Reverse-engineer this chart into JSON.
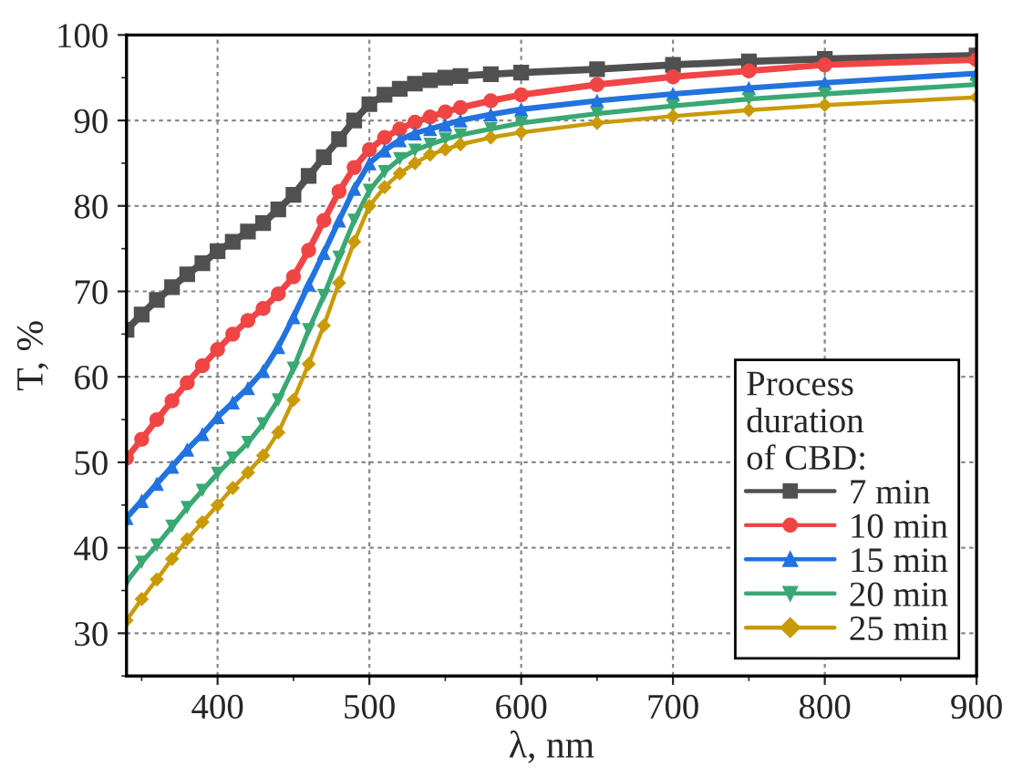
{
  "chart_data": {
    "type": "line",
    "xlabel": "λ, nm",
    "ylabel": "T, %",
    "legend_title": "Process\nduration\nof CBD:",
    "x": [
      340,
      350,
      360,
      370,
      380,
      390,
      400,
      410,
      420,
      430,
      440,
      450,
      460,
      470,
      480,
      490,
      500,
      510,
      520,
      530,
      540,
      550,
      560,
      580,
      600,
      650,
      700,
      750,
      800,
      900
    ],
    "series": [
      {
        "name": "7 min",
        "color": "#505050",
        "marker": "square",
        "values": [
          65.5,
          67.3,
          69,
          70.5,
          72,
          73.3,
          74.7,
          75.8,
          77,
          78,
          79.6,
          81.3,
          83.5,
          85.7,
          87.8,
          90,
          91.9,
          93,
          93.7,
          94.3,
          94.7,
          95.0,
          95.2,
          95.4,
          95.6,
          96.0,
          96.5,
          96.9,
          97.2,
          97.6
        ]
      },
      {
        "name": "10 min",
        "color": "#f04545",
        "marker": "circle",
        "values": [
          50.5,
          52.7,
          55,
          57.2,
          59.3,
          61.3,
          63.2,
          65,
          66.6,
          68,
          69.7,
          71.7,
          74.8,
          78.3,
          81.7,
          84.5,
          86.6,
          88,
          89,
          89.8,
          90.4,
          91,
          91.5,
          92.3,
          93,
          94.2,
          95.1,
          95.8,
          96.5,
          97.1
        ]
      },
      {
        "name": "15 min",
        "color": "#2272e0",
        "marker": "triangle",
        "values": [
          43.5,
          45.5,
          47.5,
          49.5,
          51.5,
          53.3,
          55.3,
          57,
          58.7,
          60.7,
          63.5,
          67,
          70.8,
          74.5,
          78.3,
          82,
          85,
          86.5,
          87.7,
          88.5,
          89,
          89.5,
          90,
          90.7,
          91.3,
          92.3,
          93.1,
          93.8,
          94.4,
          95.5
        ]
      },
      {
        "name": "20 min",
        "color": "#3aa873",
        "marker": "triangle_down",
        "values": [
          36,
          38.3,
          40.3,
          42.5,
          44.7,
          46.7,
          48.7,
          50.5,
          52.3,
          54.5,
          57.3,
          61,
          65.5,
          69.5,
          74,
          78.3,
          81.8,
          84,
          85.5,
          86.5,
          87.2,
          87.8,
          88.3,
          89,
          89.7,
          90.8,
          91.7,
          92.5,
          93.1,
          94.2
        ]
      },
      {
        "name": "25 min",
        "color": "#c99a06",
        "marker": "diamond",
        "values": [
          31.5,
          34,
          36.3,
          38.7,
          41,
          43,
          45,
          47,
          48.8,
          50.8,
          53.5,
          57.3,
          61.5,
          66,
          71,
          75.8,
          80,
          82.2,
          83.8,
          85,
          86,
          86.6,
          87.2,
          88,
          88.6,
          89.7,
          90.5,
          91.2,
          91.8,
          92.7
        ]
      }
    ],
    "xlim": [
      340,
      900
    ],
    "xticks": [
      400,
      500,
      600,
      700,
      800,
      900
    ],
    "ylim": [
      25,
      100
    ],
    "yticks": [
      30,
      40,
      50,
      60,
      70,
      80,
      90,
      100
    ],
    "grid": true,
    "legend": "bottom right",
    "line_style": "solid"
  }
}
